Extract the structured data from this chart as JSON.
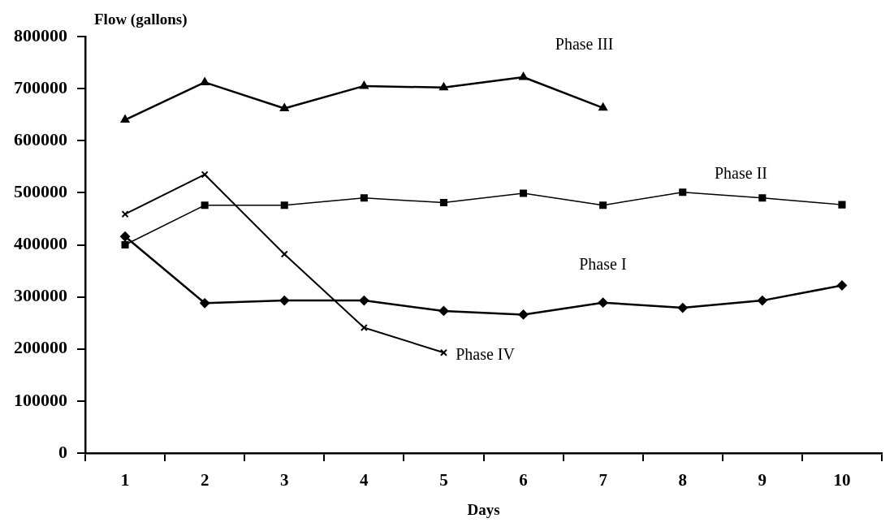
{
  "chart_data": {
    "type": "line",
    "xlabel": "Days",
    "ylabel": "Flow (gallons)",
    "categories": [
      "1",
      "2",
      "3",
      "4",
      "5",
      "6",
      "7",
      "8",
      "9",
      "10"
    ],
    "series": [
      {
        "name": "Phase I",
        "color": "#000000",
        "marker": "diamond",
        "values": [
          416000,
          288000,
          293000,
          293000,
          273000,
          266000,
          289000,
          279000,
          293000,
          322000
        ]
      },
      {
        "name": "Phase II",
        "color": "#000000",
        "marker": "square",
        "values": [
          400000,
          476000,
          476000,
          490000,
          481000,
          499000,
          476000,
          501000,
          490000,
          477000
        ]
      },
      {
        "name": "Phase III",
        "color": "#000000",
        "marker": "triangle",
        "values": [
          640000,
          712000,
          662000,
          705000,
          702000,
          722000,
          663000,
          null,
          null,
          null
        ]
      },
      {
        "name": "Phase IV",
        "color": "#000000",
        "marker": "cross",
        "values": [
          459000,
          535000,
          382000,
          241000,
          193000,
          null,
          null,
          null,
          null,
          null
        ]
      }
    ],
    "ylim": [
      0,
      800000
    ],
    "yticks": [
      0,
      100000,
      200000,
      300000,
      400000,
      500000,
      600000,
      700000,
      800000
    ],
    "grid": false,
    "legend": false,
    "line_style": "solid"
  }
}
